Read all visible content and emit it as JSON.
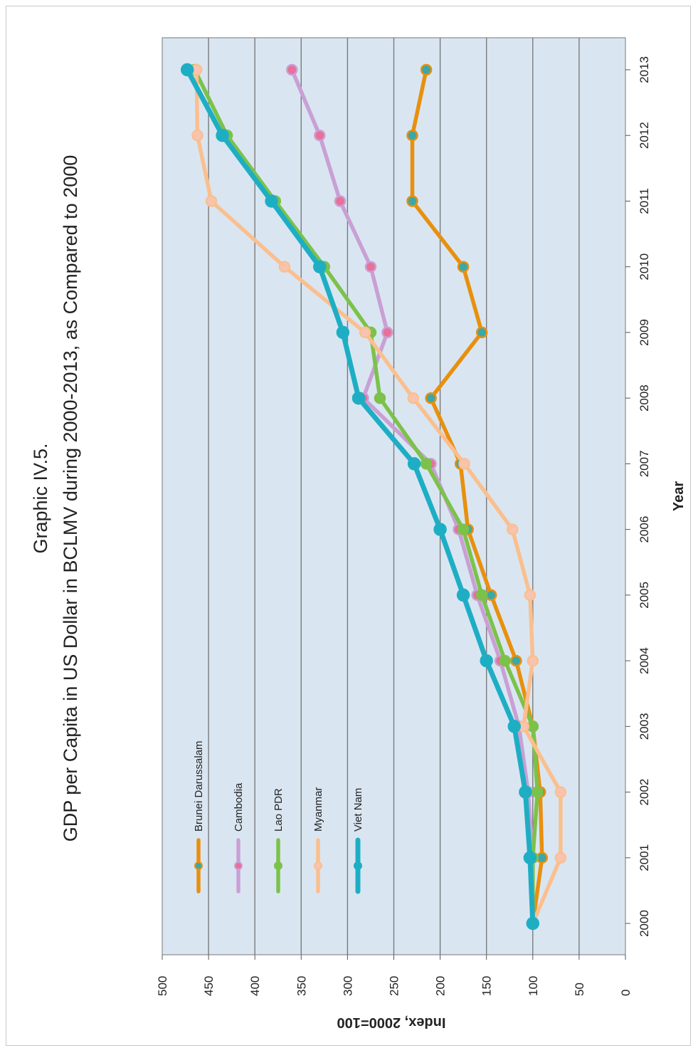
{
  "chart_data": {
    "type": "line",
    "title": "Graphic IV.5.",
    "subtitle": "GDP per Capita in US Dollar in BCLMV during 2000-2013, as Compared to 2000",
    "xlabel": "Year",
    "ylabel": "Index, 2000=100",
    "ylim": [
      0,
      500
    ],
    "yticks": [
      0,
      50,
      100,
      150,
      200,
      250,
      300,
      350,
      400,
      450,
      500
    ],
    "x": [
      2000,
      2001,
      2002,
      2003,
      2004,
      2005,
      2006,
      2007,
      2008,
      2009,
      2010,
      2011,
      2012,
      2013
    ],
    "grid": true,
    "legend_position": "inside, lower-left",
    "series": [
      {
        "name": "Brunei Darussalam",
        "color": "#e8900e",
        "marker_fill": "#3aa8a8",
        "values": [
          100,
          90,
          92,
          100,
          118,
          145,
          170,
          178,
          210,
          155,
          175,
          230,
          230,
          215
        ]
      },
      {
        "name": "Cambodia",
        "color": "#c9a0d4",
        "marker_fill": "#e8709a",
        "values": [
          100,
          100,
          105,
          115,
          135,
          160,
          180,
          210,
          283,
          257,
          275,
          308,
          330,
          360
        ]
      },
      {
        "name": "Lao PDR",
        "color": "#7cc24a",
        "marker_fill": "#7cc24a",
        "values": [
          100,
          100,
          95,
          100,
          130,
          155,
          175,
          215,
          265,
          275,
          325,
          378,
          430,
          465
        ]
      },
      {
        "name": "Myanmar",
        "color": "#fbbf8e",
        "marker_fill": "#f8c4b0",
        "values": [
          100,
          70,
          70,
          110,
          100,
          103,
          122,
          174,
          229,
          281,
          368,
          447,
          462,
          463
        ]
      },
      {
        "name": "Viet Nam",
        "color": "#1eaec4",
        "marker_fill": "#1eaec4",
        "values": [
          100,
          103,
          108,
          120,
          150,
          175,
          200,
          228,
          288,
          305,
          330,
          382,
          435,
          473
        ]
      }
    ]
  }
}
